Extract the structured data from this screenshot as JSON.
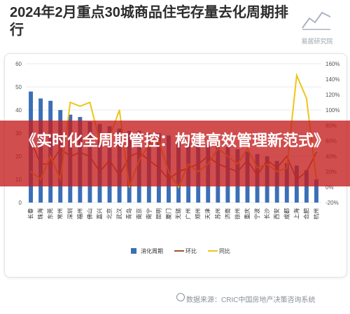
{
  "header": {
    "title": "2024年2月重点30城商品住宅存量去化周期排行",
    "logo_label": "易居研究院"
  },
  "banner": {
    "headline": "《实时化全周期管控：构建高效管理新范式》"
  },
  "source": {
    "text": "数据来源：CRIC中国房地产决策咨询系统"
  },
  "colors": {
    "bar": "#3b6fb6",
    "mom_line": "#a0522d",
    "yoy_line": "#f0c419",
    "banner": "#c41c1c"
  },
  "chart_data": {
    "type": "bar",
    "title": "2024年2月重点30城商品住宅存量去化周期排行",
    "categories": [
      "长春",
      "珠海",
      "东莞",
      "常州",
      "深圳",
      "福州",
      "佛山",
      "嘉兴",
      "北京",
      "武汉",
      "青岛",
      "南京",
      "南宁",
      "昆明",
      "厦门",
      "无锡",
      "广州",
      "郑州",
      "天津",
      "苏州",
      "济南",
      "徐州",
      "重庆",
      "宁波",
      "长沙",
      "西安",
      "成都",
      "上海",
      "合肥",
      "杭州"
    ],
    "y_left": {
      "lim": [
        0,
        60
      ],
      "ticks": [
        0,
        10,
        20,
        30,
        40,
        50,
        60
      ]
    },
    "y_right": {
      "lim": [
        -20,
        160
      ],
      "ticks": [
        "-20%",
        "0%",
        "20%",
        "40%",
        "60%",
        "80%",
        "100%",
        "120%",
        "140%",
        "160%"
      ]
    },
    "series": [
      {
        "name": "消化周期",
        "type": "bar",
        "axis": "left",
        "values": [
          48,
          45,
          44,
          40,
          38,
          37,
          35,
          34,
          33,
          32,
          31,
          31,
          30,
          30,
          29,
          27,
          27,
          26,
          25,
          25,
          24,
          23,
          22,
          21,
          20,
          18,
          17,
          16,
          14,
          10
        ]
      },
      {
        "name": "环比",
        "type": "line",
        "axis": "right",
        "values": [
          60,
          30,
          30,
          50,
          40,
          45,
          40,
          20,
          35,
          15,
          40,
          45,
          35,
          25,
          10,
          20,
          25,
          30,
          40,
          30,
          25,
          20,
          35,
          15,
          35,
          25,
          40,
          10,
          20,
          45
        ]
      },
      {
        "name": "同比",
        "type": "line",
        "axis": "right",
        "values": [
          20,
          10,
          40,
          10,
          110,
          105,
          110,
          60,
          65,
          100,
          0,
          35,
          55,
          60,
          20,
          0,
          30,
          20,
          30,
          50,
          40,
          30,
          50,
          25,
          30,
          20,
          25,
          145,
          115,
          10
        ]
      }
    ]
  }
}
